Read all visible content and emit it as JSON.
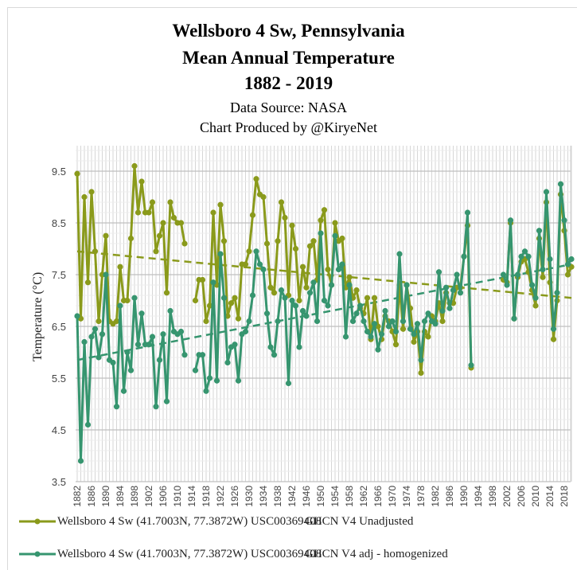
{
  "titles": {
    "line1": "Wellsboro 4 Sw, Pennsylvania",
    "line2": "Mean Annual Temperature",
    "line3": "1882 - 2019",
    "line4": "Data Source: NASA",
    "line5": "Chart Produced by @KiryeNet"
  },
  "legend": [
    {
      "label": "Wellsboro 4 Sw (41.7003N, 77.3872W) USC00369408",
      "tag": "GHCN V4 Unadjusted",
      "color": "#8a9a1b"
    },
    {
      "label": "Wellsboro 4 Sw (41.7003N, 77.3872W) USC00369408",
      "tag": "GHCN V4 adj - homogenized",
      "color": "#36956f"
    }
  ],
  "chart_data": {
    "type": "line",
    "title": "Wellsboro 4 Sw, Pennsylvania Mean Annual Temperature 1882 - 2019",
    "subtitle": "Data Source: NASA / Chart Produced by @KiryeNet",
    "xlabel": "",
    "ylabel": "Temperature (°C)",
    "ylim": [
      3.5,
      9.9
    ],
    "yticks": [
      3.5,
      4.5,
      5.5,
      6.5,
      7.5,
      8.5,
      9.5
    ],
    "xlim": [
      1882,
      2019
    ],
    "xticks": [
      1882,
      1886,
      1890,
      1894,
      1898,
      1902,
      1906,
      1910,
      1914,
      1918,
      1922,
      1926,
      1930,
      1934,
      1938,
      1942,
      1946,
      1950,
      1954,
      1958,
      1962,
      1966,
      1970,
      1974,
      1978,
      1982,
      1986,
      1990,
      1994,
      1998,
      2002,
      2006,
      2010,
      2014,
      2018
    ],
    "grid": true,
    "legend_position": "bottom",
    "series": [
      {
        "name": "Wellsboro 4 Sw (41.7003N, 77.3872W) USC00369408 GHCN V4 Unadjusted",
        "color": "#8a9a1b",
        "trend": [
          7.95,
          7.05
        ],
        "points": [
          [
            1882,
            9.45
          ],
          [
            1883,
            6.65
          ],
          [
            1884,
            9.0
          ],
          [
            1885,
            7.35
          ],
          [
            1886,
            9.1
          ],
          [
            1887,
            7.95
          ],
          [
            1888,
            6.6
          ],
          [
            1889,
            7.5
          ],
          [
            1890,
            8.25
          ],
          [
            1891,
            6.6
          ],
          [
            1892,
            6.55
          ],
          [
            1893,
            6.6
          ],
          [
            1894,
            7.65
          ],
          [
            1895,
            7.0
          ],
          [
            1896,
            7.0
          ],
          [
            1897,
            8.2
          ],
          [
            1898,
            9.6
          ],
          [
            1899,
            8.7
          ],
          [
            1900,
            9.3
          ],
          [
            1901,
            8.7
          ],
          [
            1902,
            8.7
          ],
          [
            1903,
            8.9
          ],
          [
            1904,
            7.95
          ],
          [
            1905,
            8.25
          ],
          [
            1906,
            8.5
          ],
          [
            1907,
            7.15
          ],
          [
            1908,
            8.9
          ],
          [
            1909,
            8.6
          ],
          [
            1910,
            8.5
          ],
          [
            1911,
            8.5
          ],
          [
            1912,
            8.1
          ],
          [
            1915,
            7.0
          ],
          [
            1916,
            7.4
          ],
          [
            1917,
            7.4
          ],
          [
            1918,
            6.6
          ],
          [
            1919,
            6.9
          ],
          [
            1920,
            8.7
          ],
          [
            1921,
            7.3
          ],
          [
            1922,
            8.85
          ],
          [
            1923,
            8.15
          ],
          [
            1924,
            6.7
          ],
          [
            1925,
            6.95
          ],
          [
            1926,
            7.05
          ],
          [
            1927,
            6.65
          ],
          [
            1928,
            7.7
          ],
          [
            1929,
            7.7
          ],
          [
            1930,
            7.95
          ],
          [
            1931,
            8.65
          ],
          [
            1932,
            9.35
          ],
          [
            1933,
            9.05
          ],
          [
            1934,
            9.0
          ],
          [
            1935,
            8.1
          ],
          [
            1936,
            7.25
          ],
          [
            1937,
            7.15
          ],
          [
            1938,
            8.15
          ],
          [
            1939,
            8.9
          ],
          [
            1940,
            8.6
          ],
          [
            1941,
            7.1
          ],
          [
            1942,
            8.45
          ],
          [
            1943,
            8.0
          ],
          [
            1944,
            7.0
          ],
          [
            1945,
            7.65
          ],
          [
            1946,
            7.25
          ],
          [
            1947,
            8.05
          ],
          [
            1948,
            8.15
          ],
          [
            1949,
            7.4
          ],
          [
            1950,
            8.55
          ],
          [
            1951,
            8.75
          ],
          [
            1952,
            7.6
          ],
          [
            1953,
            7.3
          ],
          [
            1954,
            8.5
          ],
          [
            1955,
            8.15
          ],
          [
            1956,
            8.2
          ],
          [
            1957,
            7.25
          ],
          [
            1958,
            7.45
          ],
          [
            1959,
            7.05
          ],
          [
            1960,
            7.2
          ],
          [
            1961,
            6.85
          ],
          [
            1962,
            6.75
          ],
          [
            1963,
            7.05
          ],
          [
            1964,
            6.25
          ],
          [
            1965,
            7.05
          ],
          [
            1966,
            6.5
          ],
          [
            1967,
            6.25
          ],
          [
            1968,
            6.7
          ],
          [
            1969,
            6.6
          ],
          [
            1970,
            6.4
          ],
          [
            1971,
            6.15
          ],
          [
            1972,
            7.3
          ],
          [
            1973,
            6.45
          ],
          [
            1974,
            7.3
          ],
          [
            1975,
            6.85
          ],
          [
            1976,
            6.2
          ],
          [
            1977,
            6.4
          ],
          [
            1978,
            5.6
          ],
          [
            1979,
            6.4
          ],
          [
            1980,
            6.3
          ],
          [
            1981,
            6.7
          ],
          [
            1982,
            6.6
          ],
          [
            1983,
            6.95
          ],
          [
            1984,
            6.6
          ],
          [
            1985,
            7.15
          ],
          [
            1986,
            6.95
          ],
          [
            1987,
            6.95
          ],
          [
            1988,
            7.25
          ],
          [
            1989,
            7.25
          ],
          [
            1990,
            7.85
          ],
          [
            1991,
            8.45
          ],
          [
            1992,
            5.7
          ],
          [
            2001,
            7.4
          ],
          [
            2002,
            7.35
          ],
          [
            2003,
            8.5
          ],
          [
            2004,
            6.65
          ],
          [
            2005,
            7.45
          ],
          [
            2006,
            7.75
          ],
          [
            2007,
            7.8
          ],
          [
            2008,
            7.55
          ],
          [
            2009,
            7.2
          ],
          [
            2010,
            6.9
          ],
          [
            2011,
            8.2
          ],
          [
            2012,
            7.45
          ],
          [
            2013,
            8.9
          ],
          [
            2014,
            7.35
          ],
          [
            2015,
            6.25
          ],
          [
            2016,
            7.0
          ],
          [
            2017,
            9.05
          ],
          [
            2018,
            8.35
          ],
          [
            2019,
            7.5
          ],
          [
            2020,
            7.65
          ]
        ]
      },
      {
        "name": "Wellsboro 4 Sw (41.7003N, 77.3872W) USC00369408 GHCN V4 adj - homogenized",
        "color": "#36956f",
        "trend": [
          5.85,
          7.7
        ],
        "points": [
          [
            1882,
            6.7
          ],
          [
            1883,
            3.9
          ],
          [
            1884,
            6.2
          ],
          [
            1885,
            4.6
          ],
          [
            1886,
            6.3
          ],
          [
            1887,
            6.45
          ],
          [
            1888,
            5.9
          ],
          [
            1889,
            6.35
          ],
          [
            1890,
            7.5
          ],
          [
            1891,
            5.85
          ],
          [
            1892,
            5.8
          ],
          [
            1893,
            4.95
          ],
          [
            1894,
            6.9
          ],
          [
            1895,
            5.25
          ],
          [
            1896,
            6.0
          ],
          [
            1897,
            5.65
          ],
          [
            1898,
            7.05
          ],
          [
            1899,
            6.15
          ],
          [
            1900,
            6.75
          ],
          [
            1901,
            6.15
          ],
          [
            1902,
            6.15
          ],
          [
            1903,
            6.3
          ],
          [
            1904,
            4.95
          ],
          [
            1905,
            5.85
          ],
          [
            1906,
            6.35
          ],
          [
            1907,
            5.05
          ],
          [
            1908,
            6.8
          ],
          [
            1909,
            6.4
          ],
          [
            1910,
            6.35
          ],
          [
            1911,
            6.4
          ],
          [
            1912,
            5.95
          ],
          [
            1915,
            5.65
          ],
          [
            1916,
            5.95
          ],
          [
            1917,
            5.95
          ],
          [
            1918,
            5.25
          ],
          [
            1919,
            5.5
          ],
          [
            1920,
            7.35
          ],
          [
            1921,
            5.45
          ],
          [
            1922,
            7.9
          ],
          [
            1923,
            7.05
          ],
          [
            1924,
            5.8
          ],
          [
            1925,
            6.1
          ],
          [
            1926,
            6.15
          ],
          [
            1927,
            5.45
          ],
          [
            1928,
            6.35
          ],
          [
            1929,
            6.4
          ],
          [
            1930,
            6.6
          ],
          [
            1931,
            7.1
          ],
          [
            1932,
            7.95
          ],
          [
            1933,
            7.7
          ],
          [
            1934,
            7.6
          ],
          [
            1935,
            6.75
          ],
          [
            1936,
            6.1
          ],
          [
            1937,
            5.95
          ],
          [
            1938,
            6.6
          ],
          [
            1939,
            7.2
          ],
          [
            1940,
            7.05
          ],
          [
            1941,
            5.4
          ],
          [
            1942,
            7.0
          ],
          [
            1943,
            6.9
          ],
          [
            1944,
            6.1
          ],
          [
            1945,
            6.8
          ],
          [
            1946,
            6.7
          ],
          [
            1947,
            7.15
          ],
          [
            1948,
            7.35
          ],
          [
            1949,
            6.6
          ],
          [
            1950,
            8.3
          ],
          [
            1951,
            7.0
          ],
          [
            1952,
            6.9
          ],
          [
            1953,
            7.3
          ],
          [
            1954,
            8.25
          ],
          [
            1955,
            7.6
          ],
          [
            1956,
            7.7
          ],
          [
            1957,
            6.3
          ],
          [
            1958,
            7.3
          ],
          [
            1959,
            6.6
          ],
          [
            1960,
            6.75
          ],
          [
            1961,
            6.9
          ],
          [
            1962,
            6.6
          ],
          [
            1963,
            6.4
          ],
          [
            1964,
            6.3
          ],
          [
            1965,
            6.55
          ],
          [
            1966,
            6.05
          ],
          [
            1967,
            6.35
          ],
          [
            1968,
            6.8
          ],
          [
            1969,
            6.5
          ],
          [
            1970,
            6.6
          ],
          [
            1971,
            6.4
          ],
          [
            1972,
            7.9
          ],
          [
            1973,
            6.6
          ],
          [
            1974,
            7.3
          ],
          [
            1975,
            6.45
          ],
          [
            1976,
            6.35
          ],
          [
            1977,
            6.55
          ],
          [
            1978,
            5.85
          ],
          [
            1979,
            6.6
          ],
          [
            1980,
            6.75
          ],
          [
            1981,
            6.6
          ],
          [
            1982,
            6.55
          ],
          [
            1983,
            7.55
          ],
          [
            1984,
            6.8
          ],
          [
            1985,
            7.25
          ],
          [
            1986,
            6.85
          ],
          [
            1987,
            7.2
          ],
          [
            1988,
            7.5
          ],
          [
            1989,
            7.15
          ],
          [
            1990,
            7.85
          ],
          [
            1991,
            8.7
          ],
          [
            1992,
            5.75
          ],
          [
            2001,
            7.5
          ],
          [
            2002,
            7.3
          ],
          [
            2003,
            8.55
          ],
          [
            2004,
            6.65
          ],
          [
            2005,
            7.5
          ],
          [
            2006,
            7.85
          ],
          [
            2007,
            7.95
          ],
          [
            2008,
            7.85
          ],
          [
            2009,
            7.3
          ],
          [
            2010,
            7.05
          ],
          [
            2011,
            8.35
          ],
          [
            2012,
            7.6
          ],
          [
            2013,
            9.1
          ],
          [
            2014,
            7.8
          ],
          [
            2015,
            6.45
          ],
          [
            2016,
            7.15
          ],
          [
            2017,
            9.25
          ],
          [
            2018,
            8.55
          ],
          [
            2019,
            7.7
          ],
          [
            2020,
            7.8
          ]
        ]
      }
    ]
  }
}
